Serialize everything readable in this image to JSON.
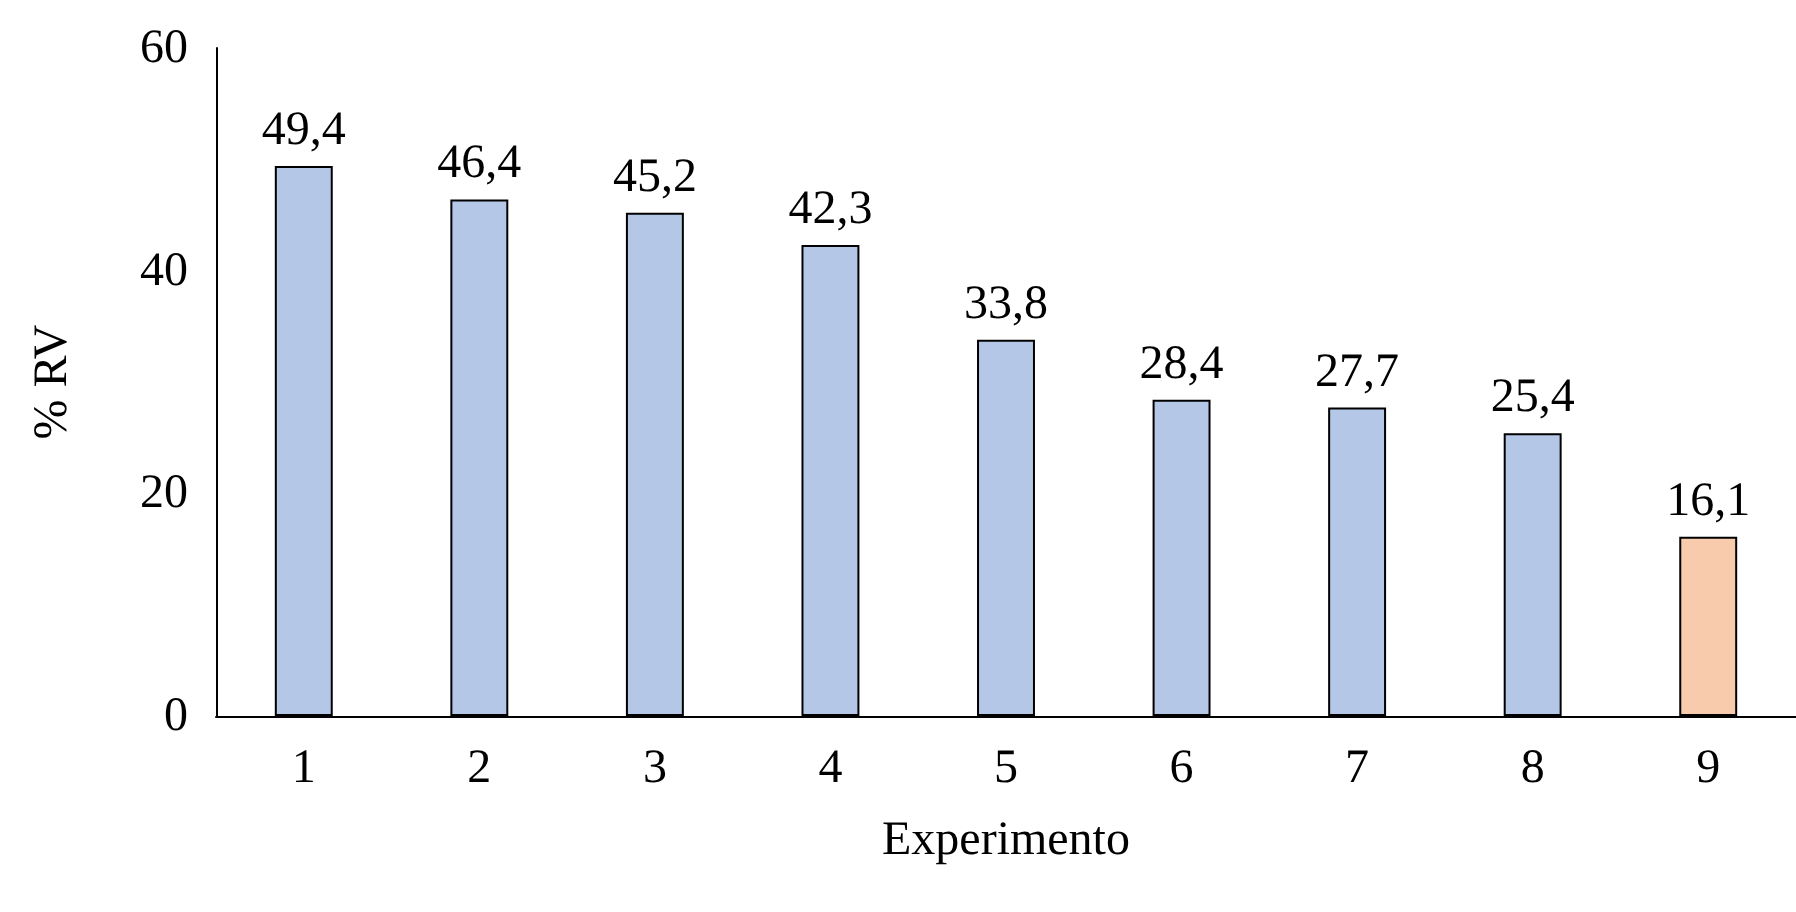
{
  "chart_data": {
    "type": "bar",
    "xlabel": "Experimento",
    "ylabel": "% RV",
    "categories": [
      "1",
      "2",
      "3",
      "4",
      "5",
      "6",
      "7",
      "8",
      "9"
    ],
    "values": [
      49.4,
      46.4,
      45.2,
      42.3,
      33.8,
      28.4,
      27.7,
      25.4,
      16.1
    ],
    "value_labels": [
      "49,4",
      "46,4",
      "45,2",
      "42,3",
      "33,8",
      "28,4",
      "27,7",
      "25,4",
      "16,1"
    ],
    "colors": [
      "#b4c7e7",
      "#b4c7e7",
      "#b4c7e7",
      "#b4c7e7",
      "#b4c7e7",
      "#b4c7e7",
      "#b4c7e7",
      "#b4c7e7",
      "#f8cbad"
    ],
    "ylim": [
      0,
      60
    ],
    "yticks": [
      0,
      20,
      40,
      60
    ]
  }
}
